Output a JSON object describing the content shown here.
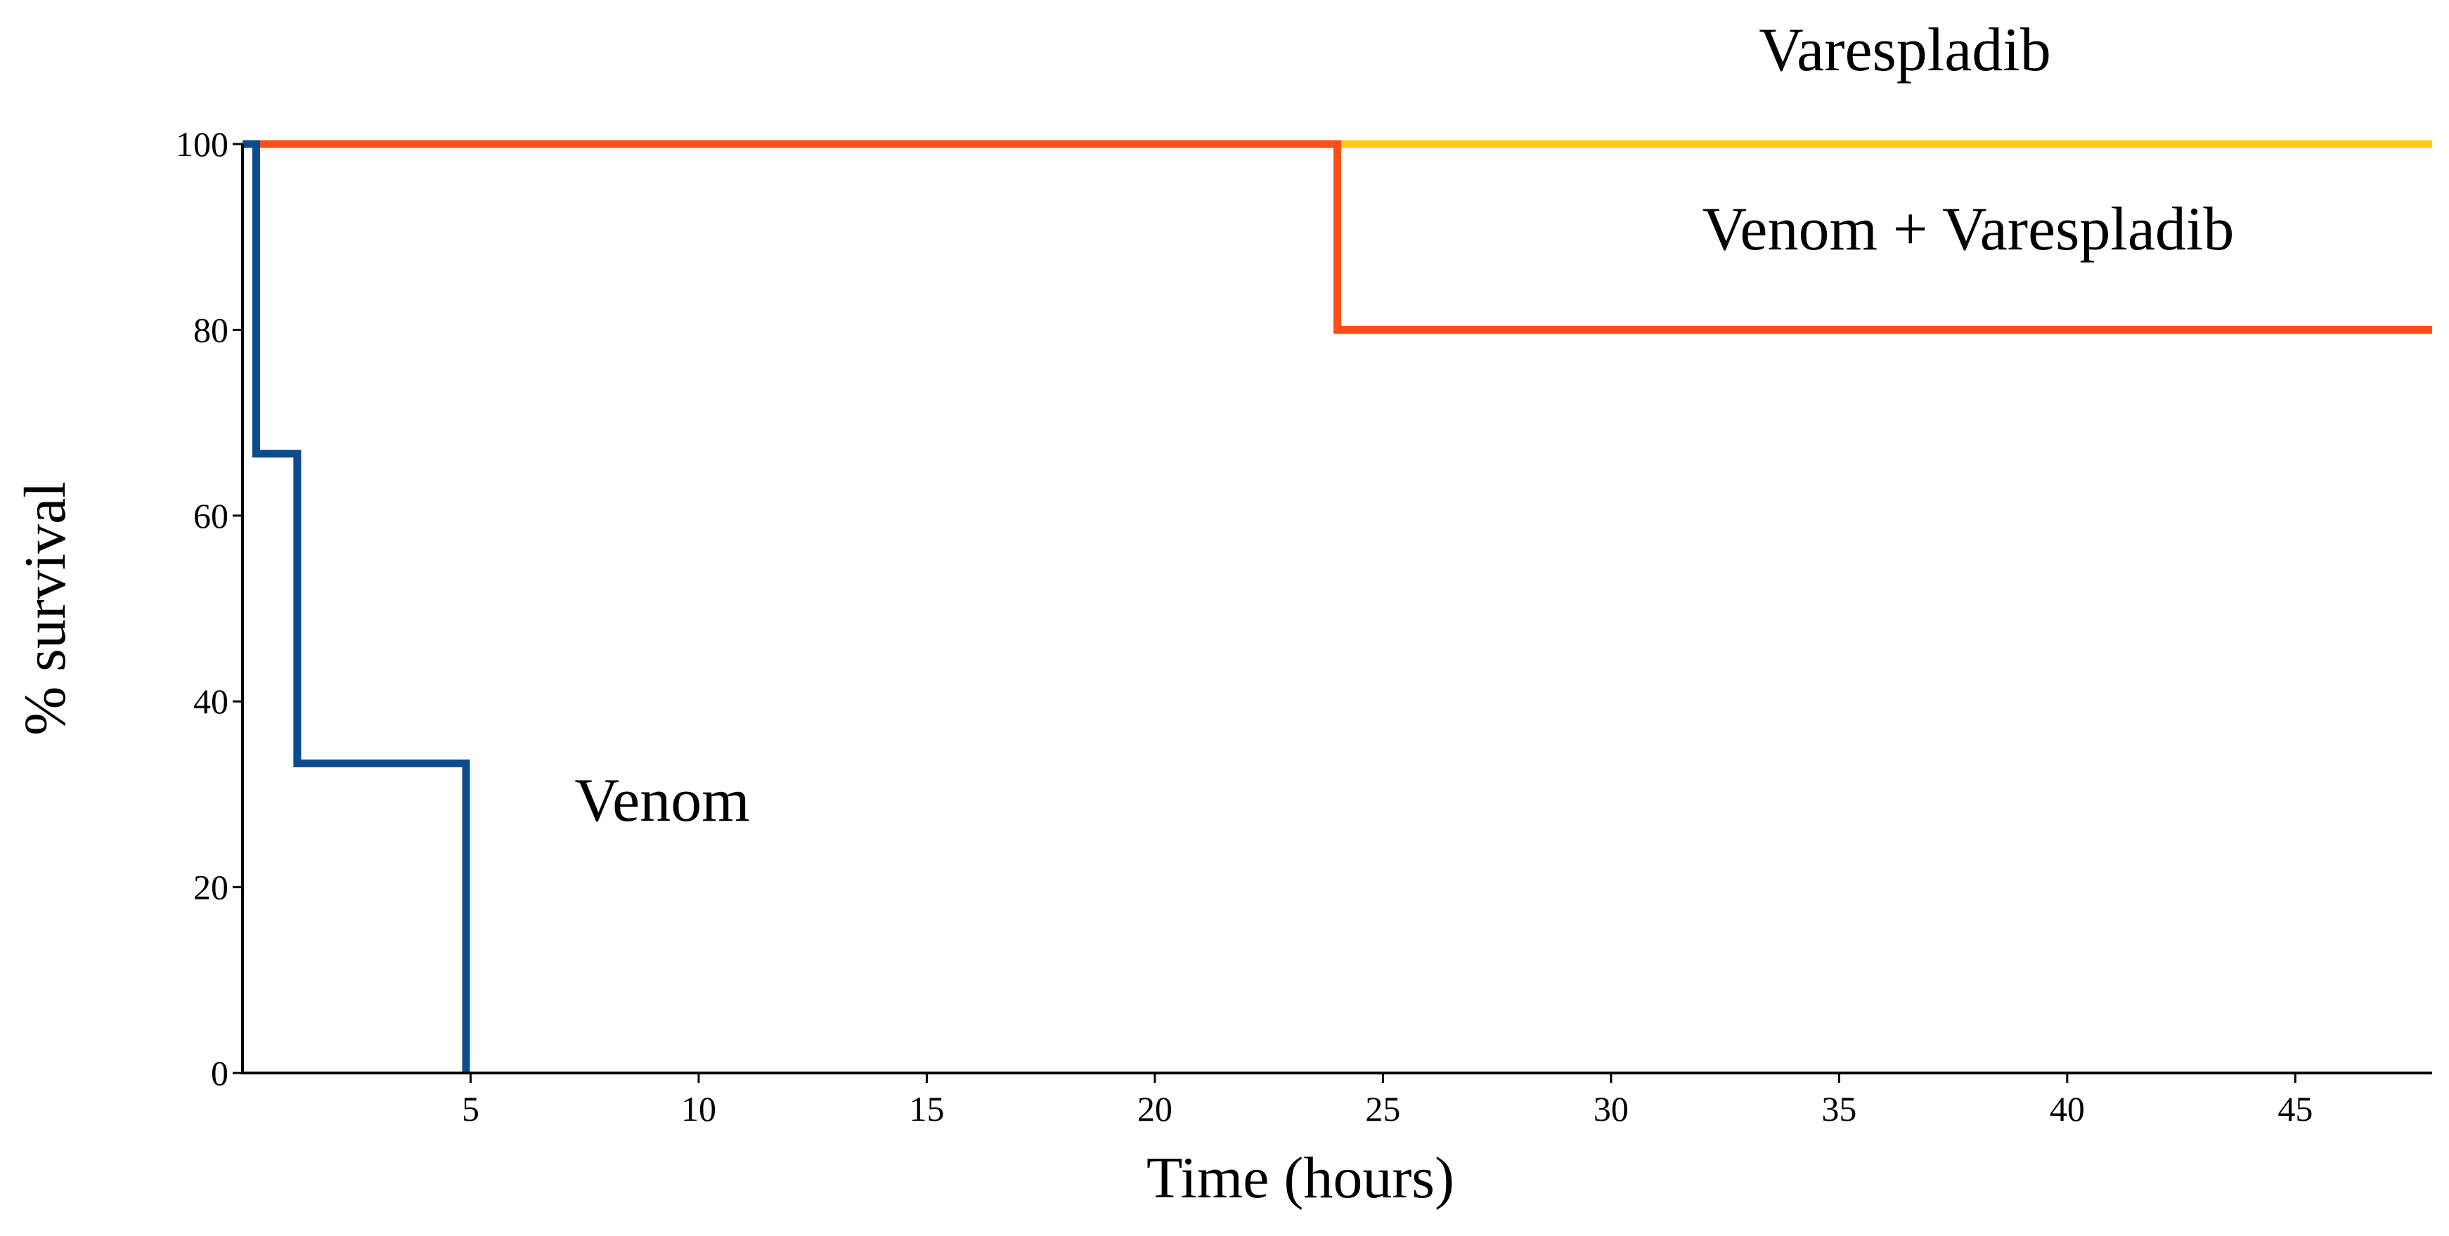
{
  "chart_data": {
    "type": "line",
    "step": true,
    "title": "",
    "xlabel": "Time (hours)",
    "ylabel": "% survival",
    "xlim": [
      0,
      48
    ],
    "ylim": [
      0,
      100
    ],
    "x_ticks": [
      5,
      10,
      15,
      20,
      25,
      30,
      35,
      40,
      45
    ],
    "y_ticks": [
      0,
      20,
      40,
      60,
      80,
      100
    ],
    "grid": false,
    "legend": "none (series labelled directly on plot)",
    "series": [
      {
        "name": "Varespladib",
        "color": "#FFCC11",
        "points": [
          [
            0,
            100
          ],
          [
            48,
            100
          ]
        ]
      },
      {
        "name": "Venom + Varespladib",
        "color": "#FF4E17",
        "points": [
          [
            0,
            100
          ],
          [
            24,
            100
          ],
          [
            24,
            80
          ],
          [
            48,
            80
          ]
        ]
      },
      {
        "name": "Venom",
        "color": "#0C4B8C",
        "points": [
          [
            0,
            100
          ],
          [
            0.3,
            100
          ],
          [
            0.3,
            66.67
          ],
          [
            1.2,
            66.67
          ],
          [
            1.2,
            33.33
          ],
          [
            4.9,
            33.33
          ],
          [
            4.9,
            0
          ]
        ]
      }
    ]
  }
}
